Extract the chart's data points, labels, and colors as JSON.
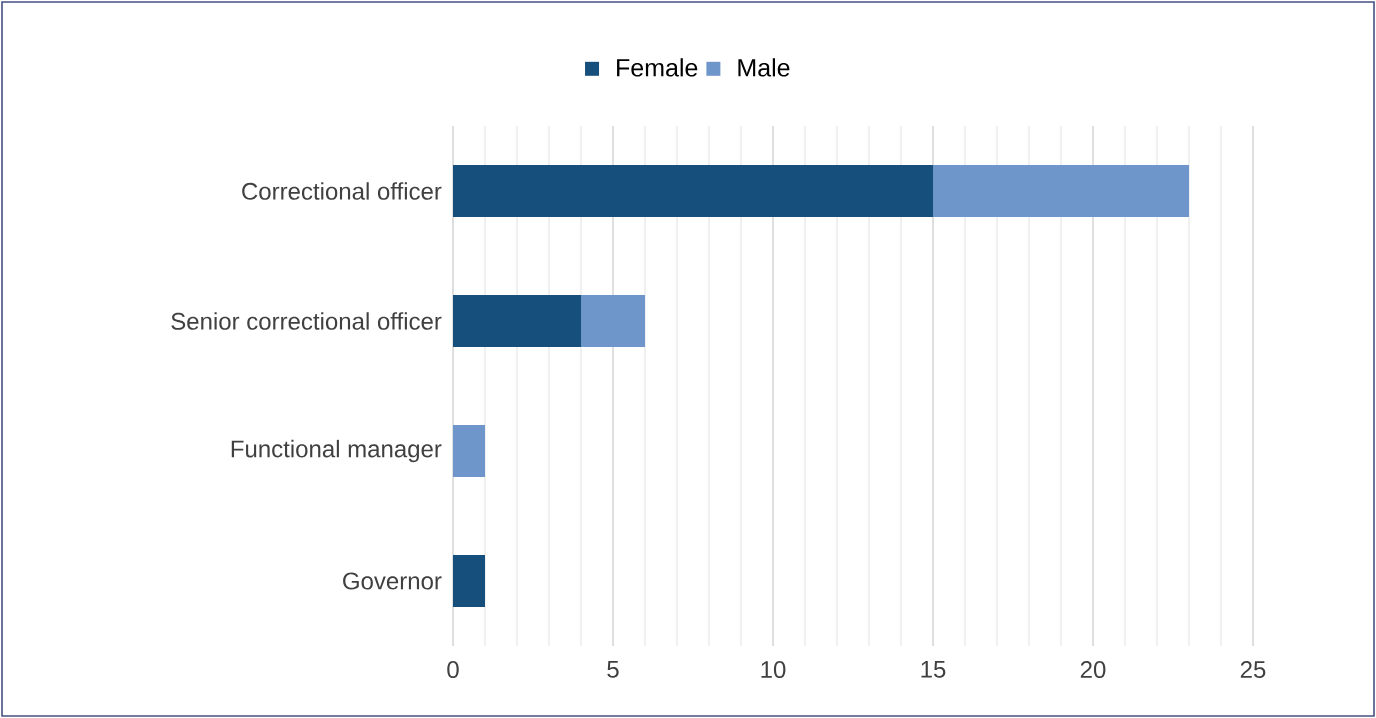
{
  "chart_data": {
    "type": "bar",
    "orientation": "horizontal",
    "stacked": true,
    "categories": [
      "Correctional officer",
      "Senior correctional officer",
      "Functional manager",
      "Governor"
    ],
    "series": [
      {
        "name": "Female",
        "color": "#174f7c",
        "values": [
          15,
          4,
          0,
          1
        ]
      },
      {
        "name": "Male",
        "color": "#6f96cb",
        "values": [
          8,
          2,
          1,
          0
        ]
      }
    ],
    "xlim": [
      0,
      25
    ],
    "xticks": [
      0,
      5,
      10,
      15,
      20,
      25
    ],
    "grid": "x",
    "legend": "top"
  }
}
